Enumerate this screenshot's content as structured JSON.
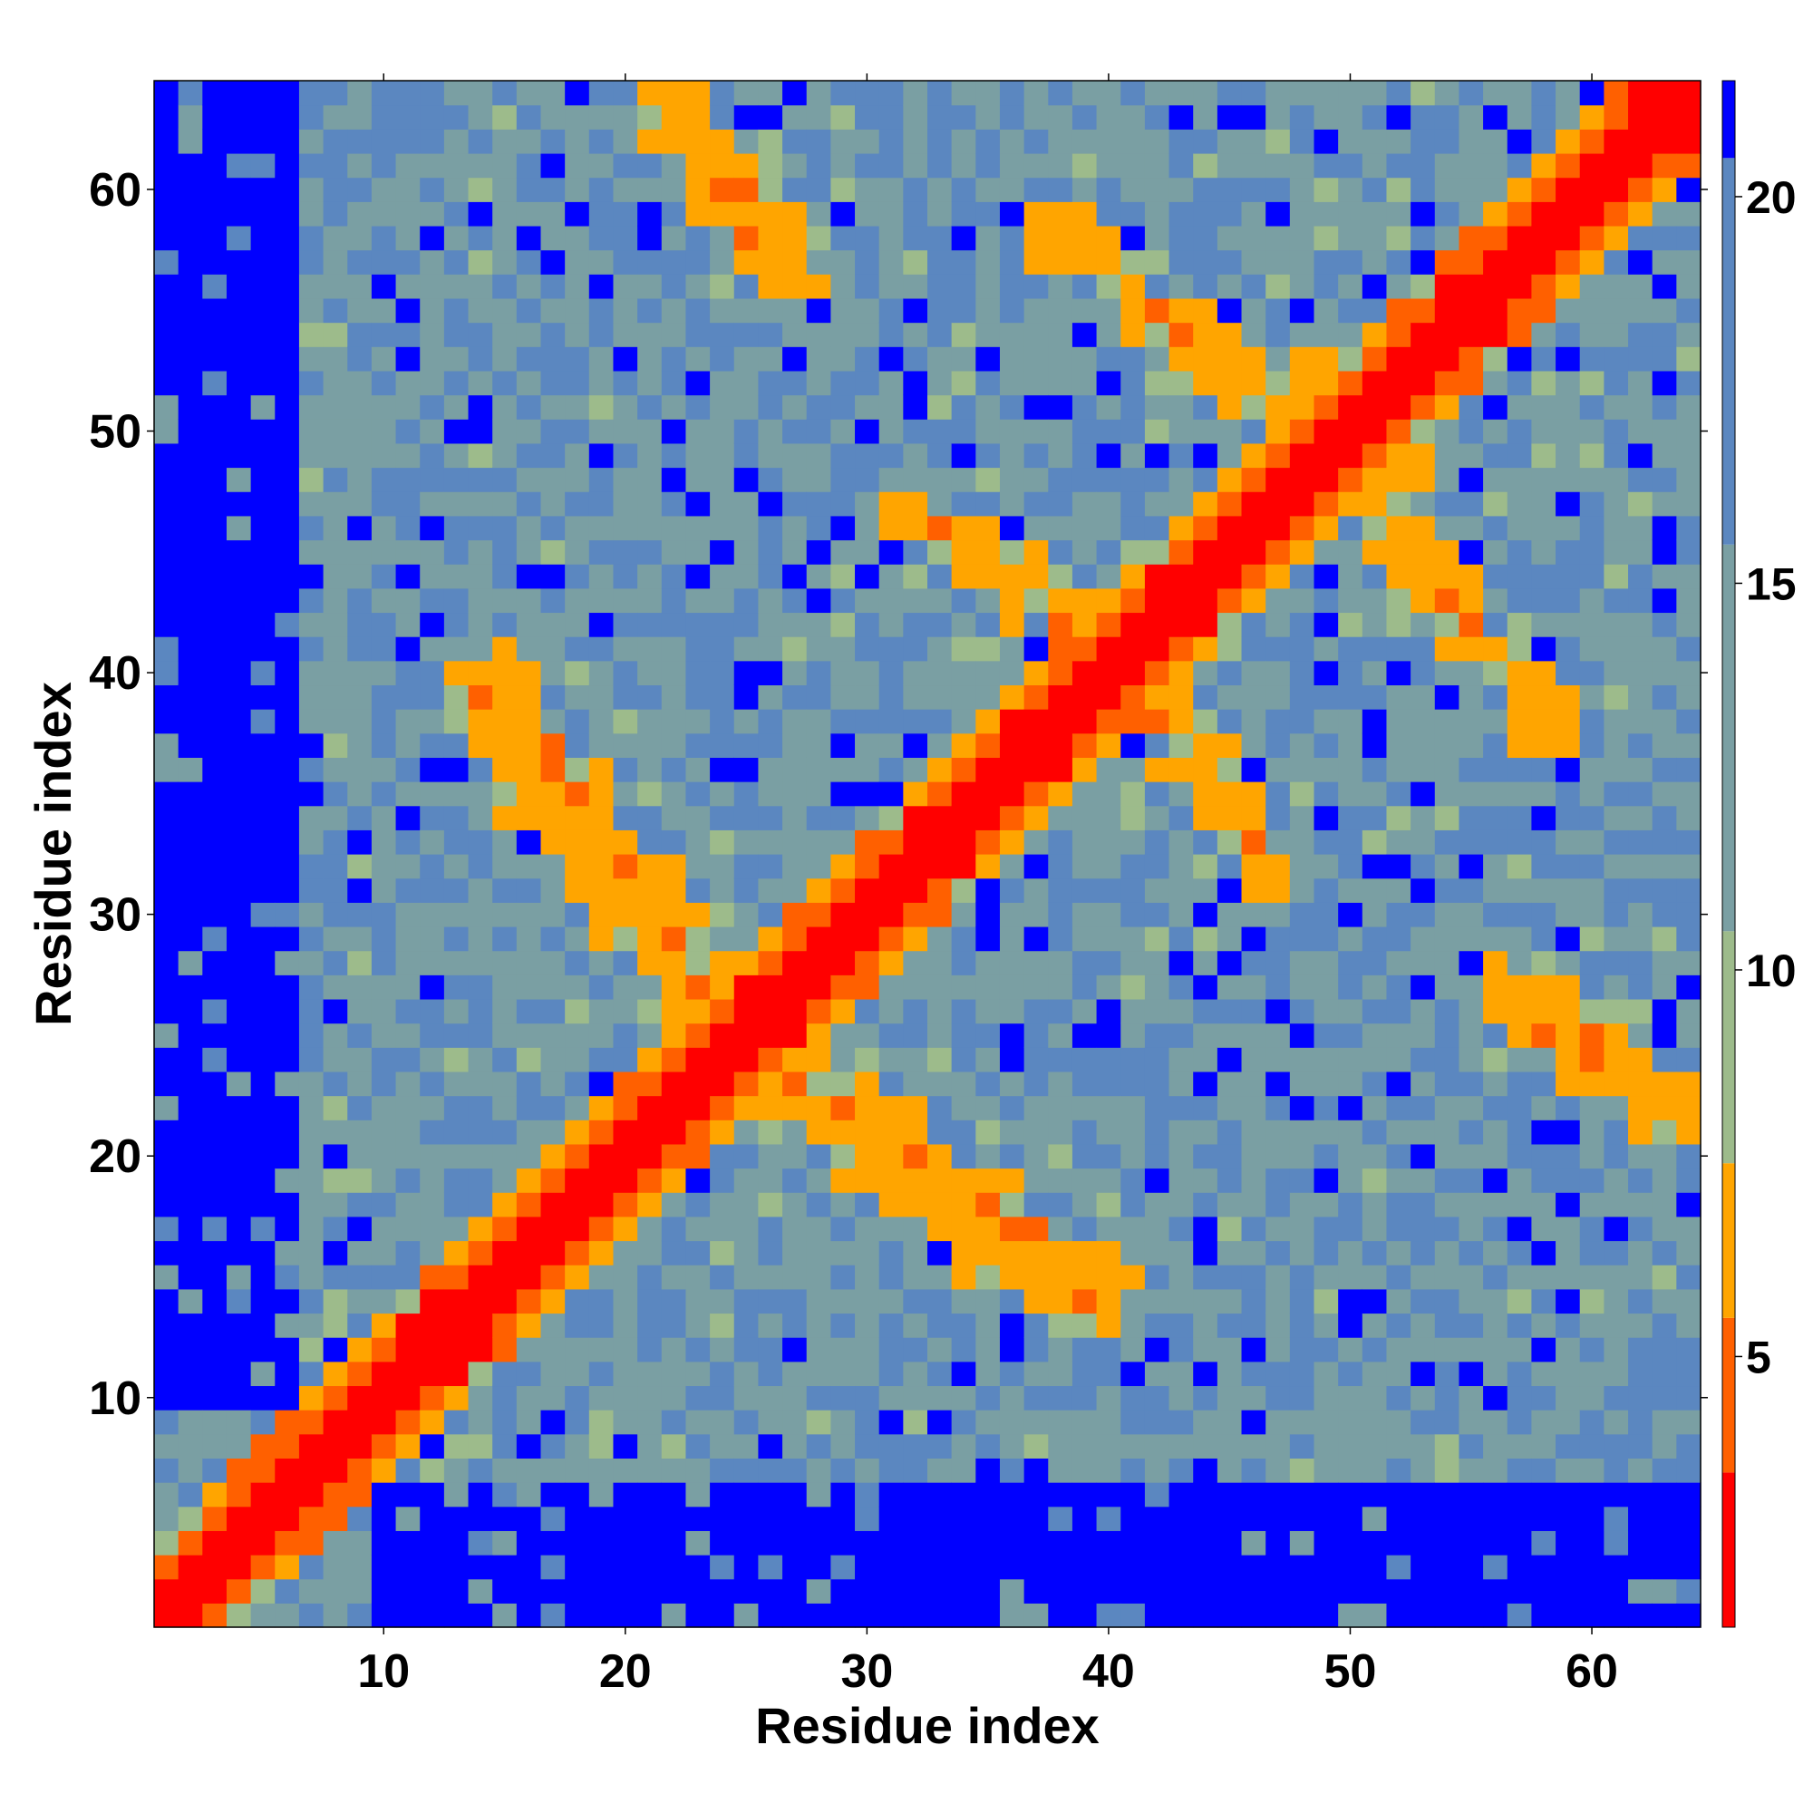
{
  "chart_data": {
    "type": "heatmap",
    "title": "",
    "xlabel": "Residue index",
    "ylabel": "Residue index",
    "n_residues": 64,
    "xlim": [
      1,
      64
    ],
    "ylim": [
      1,
      64
    ],
    "x_ticks": [
      10,
      20,
      30,
      40,
      50,
      60
    ],
    "y_ticks": [
      10,
      20,
      30,
      40,
      50,
      60
    ],
    "x_tick_labels": [
      "10",
      "20",
      "30",
      "40",
      "50",
      "60"
    ],
    "y_tick_labels": [
      "10",
      "20",
      "30",
      "40",
      "50",
      "60"
    ],
    "colorbar": {
      "range": [
        1.5,
        21.5
      ],
      "ticks": [
        5,
        10,
        15,
        20
      ],
      "tick_labels": [
        "5",
        "10",
        "15",
        "20"
      ],
      "colors": [
        "#ff0000",
        "#ff6000",
        "#ffa500",
        "#9dbb8b",
        "#7a9fa3",
        "#5b87c0",
        "#0000ff"
      ],
      "bin_edges": [
        1.5,
        3.5,
        5.5,
        7.5,
        10.5,
        15.5,
        20.5,
        21.5
      ]
    },
    "notes_model": {
      "diagonal_value": 1,
      "contact_bands": [
        {
          "offset_center": 0,
          "width": 1.2,
          "value": 1
        },
        {
          "offset_center": 1.8,
          "width": 1.2,
          "value": 4
        }
      ],
      "secondary_contacts": [
        {
          "from": [
            14,
            40
          ],
          "to": [
            25,
            26
          ],
          "value": 6
        },
        {
          "from": [
            23,
            25
          ],
          "to": [
            38,
            14
          ],
          "value": 6
        },
        {
          "from": [
            32,
            46
          ],
          "to": [
            43,
            40
          ],
          "value": 6
        },
        {
          "from": [
            42,
            55
          ],
          "to": [
            52,
            48
          ],
          "value": 6
        },
        {
          "from": [
            53,
            44
          ],
          "to": [
            58,
            38
          ],
          "value": 6
        },
        {
          "from": [
            56,
            27
          ],
          "to": [
            64,
            21
          ],
          "value": 6
        },
        {
          "from": [
            22,
            64
          ],
          "to": [
            27,
            57
          ],
          "value": 6
        }
      ]
    }
  }
}
